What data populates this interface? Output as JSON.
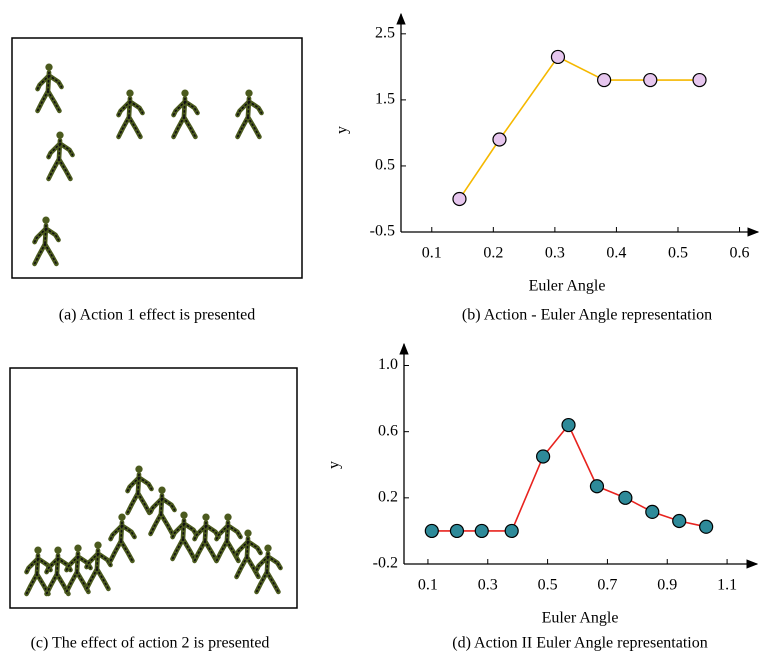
{
  "panels": [
    {
      "caption": "(a) Action 1 effect is presented"
    },
    {
      "caption": "(c) The effect of action 2 is presented"
    }
  ],
  "chart_data": [
    {
      "type": "line",
      "caption": "(b) Action - Euler Angle representation",
      "x_label": "Euler Angle",
      "y_label": "y",
      "x": [
        0.145,
        0.21,
        0.305,
        0.38,
        0.455,
        0.535
      ],
      "values": [
        0,
        0.9,
        2.15,
        1.8,
        1.8,
        1.8
      ],
      "color": "#f5b800",
      "marker_color": "#e6c6ee",
      "xlim": [
        0.05,
        0.63
      ],
      "xticks": [
        0.1,
        0.2,
        0.3,
        0.4,
        0.5,
        0.6
      ],
      "ylim": [
        -0.5,
        2.8
      ],
      "yticks": [
        -0.5,
        0.5,
        1.5,
        2.5
      ]
    },
    {
      "type": "line",
      "caption": "(d) Action II Euler Angle representation",
      "x_label": "Euler Angle",
      "y_label": "y",
      "x": [
        0.113,
        0.197,
        0.28,
        0.38,
        0.485,
        0.57,
        0.665,
        0.76,
        0.85,
        0.94,
        1.03
      ],
      "values": [
        0,
        0,
        0,
        0,
        0.45,
        0.64,
        0.27,
        0.2,
        0.115,
        0.06,
        0.025
      ],
      "color": "#e8231f",
      "marker_color": "#2e8a99",
      "xlim": [
        0.02,
        1.2
      ],
      "xticks": [
        0.1,
        0.3,
        0.5,
        0.7,
        0.9,
        1.1
      ],
      "ylim": [
        -0.2,
        1.13
      ],
      "yticks": [
        -0.2,
        0.2,
        0.6,
        {
          "value": 1,
          "label": "1.0"
        }
      ]
    }
  ]
}
